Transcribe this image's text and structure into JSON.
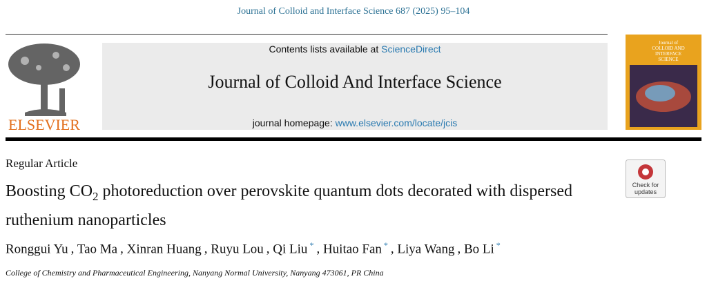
{
  "citation": "Journal of Colloid and Interface Science 687 (2025) 95–104",
  "header": {
    "contents_prefix": "Contents lists available at",
    "contents_link": "ScienceDirect",
    "journal_title": "Journal of Colloid And Interface Science",
    "homepage_label": "journal homepage:",
    "homepage_url": "www.elsevier.com/locate/jcis",
    "publisher": "ELSEVIER",
    "cover": {
      "line1": "Journal of",
      "line2": "COLLOID AND",
      "line3": "INTERFACE",
      "line4": "SCIENCE"
    }
  },
  "article_type": "Regular Article",
  "title": {
    "before": "Boosting CO",
    "subscript": "2",
    "after": " photoreduction over perovskite quantum dots decorated with dispersed ruthenium nanoparticles"
  },
  "badge": {
    "line1": "Check for",
    "line2": "updates"
  },
  "author_separator": ",",
  "authors": [
    {
      "name": "Ronggui Yu"
    },
    {
      "name": "Tao Ma"
    },
    {
      "name": "Xinran Huang"
    },
    {
      "name": "Ruyu Lou"
    },
    {
      "name": "Qi Liu",
      "note": "*"
    },
    {
      "name": "Huitao Fan",
      "note": "*"
    },
    {
      "name": "Liya Wang"
    },
    {
      "name": "Bo Li",
      "note": "*"
    }
  ],
  "affiliation": "College of Chemistry and Pharmaceutical Engineering, Nanyang Normal University, Nanyang 473061, PR China"
}
